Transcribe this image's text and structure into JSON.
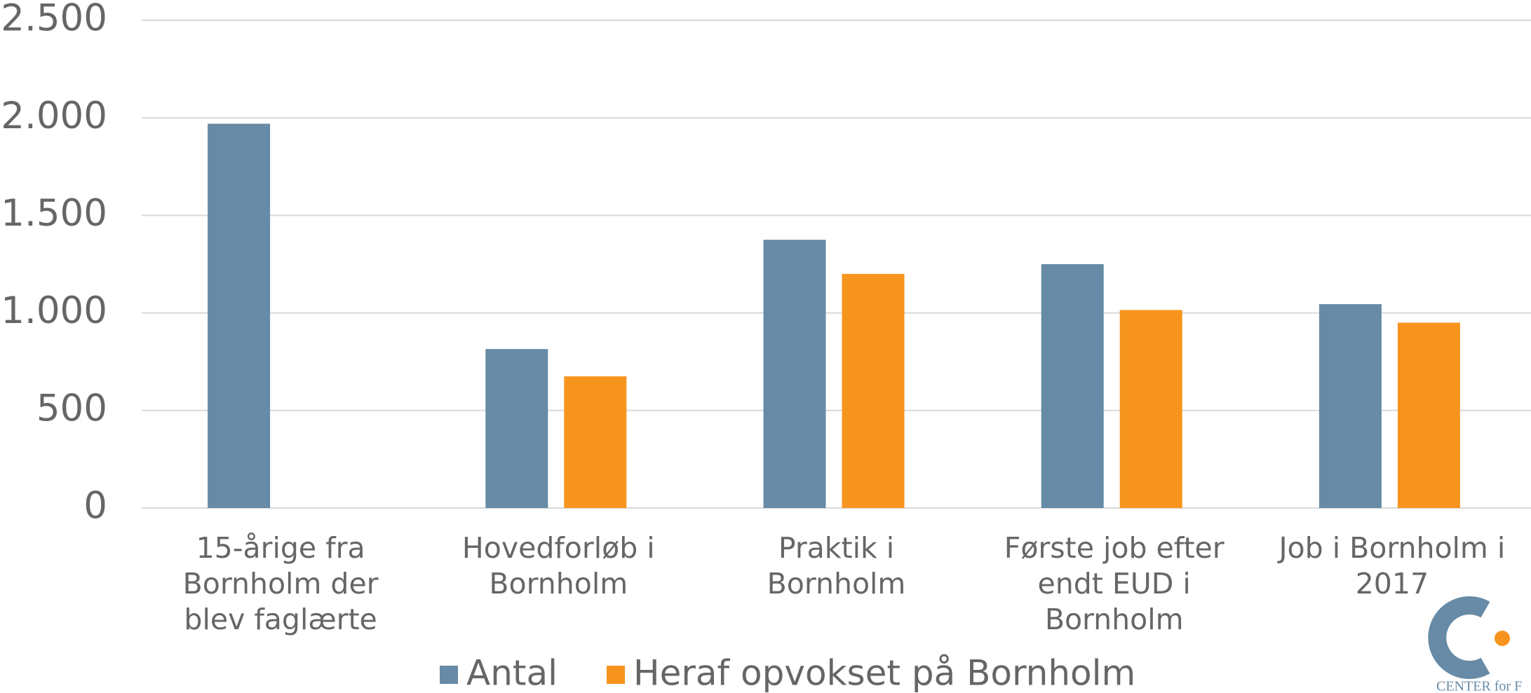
{
  "chart_data": {
    "type": "bar",
    "categories": [
      "15-årige fra Bornholm der blev faglærte",
      "Hovedforløb i Bornholm",
      "Praktik i Bornholm",
      "Første job efter endt EUD i Bornholm",
      "Job i Bornholm i 2017"
    ],
    "series": [
      {
        "name": "Antal",
        "color": "#678ba6",
        "values": [
          1970,
          815,
          1375,
          1250,
          1045
        ]
      },
      {
        "name": "Heraf opvokset på Bornholm",
        "color": "#f7941e",
        "values": [
          null,
          675,
          1200,
          1015,
          950
        ]
      }
    ],
    "ylim": [
      0,
      2500
    ],
    "yticks": [
      0,
      500,
      {
        "value": 1000,
        "label": "1.000"
      },
      {
        "value": 1500,
        "label": "1.500"
      },
      {
        "value": 2000,
        "label": "2.000"
      },
      {
        "value": 2500,
        "label": "2.500"
      }
    ],
    "grid": true,
    "legend": "bottom"
  },
  "logo": {
    "text": "CENTER for F"
  }
}
